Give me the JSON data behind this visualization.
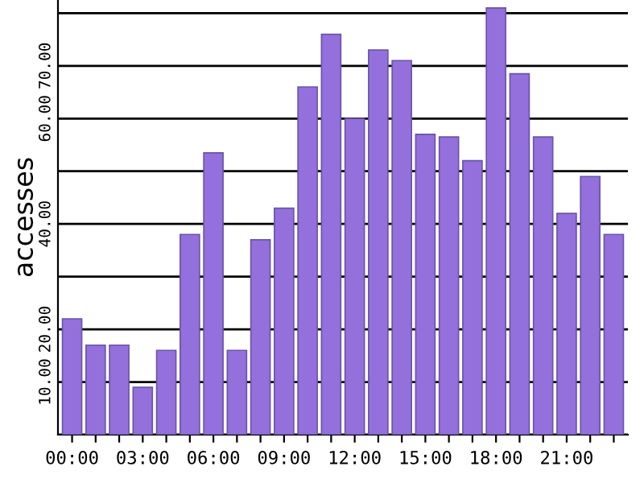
{
  "chart_data": {
    "type": "bar",
    "ylabel": "accesses",
    "categories": [
      "00:00",
      null,
      null,
      "03:00",
      null,
      null,
      "06:00",
      null,
      null,
      "09:00",
      null,
      null,
      "12:00",
      null,
      null,
      "15:00",
      null,
      null,
      "18:00",
      null,
      null,
      "21:00",
      null,
      null
    ],
    "values": [
      22,
      17,
      17,
      9,
      16,
      38,
      53.5,
      16,
      37,
      43,
      66,
      76,
      60,
      73,
      71,
      57,
      56.5,
      52,
      81,
      68.5,
      56.5,
      42,
      49,
      38
    ],
    "color": "#9370db",
    "ylim": [
      0,
      82.5
    ],
    "yticks": [
      {
        "value": 0,
        "label": null
      },
      {
        "value": 10,
        "label": "10.00"
      },
      {
        "value": 20,
        "label": "20.00"
      },
      {
        "value": 30,
        "label": null
      },
      {
        "value": 40,
        "label": "40.00"
      },
      {
        "value": 50,
        "label": null
      },
      {
        "value": 60,
        "label": "60.00"
      },
      {
        "value": 70,
        "label": "70.00"
      },
      {
        "value": 80,
        "label": null
      }
    ],
    "grid": "y"
  }
}
